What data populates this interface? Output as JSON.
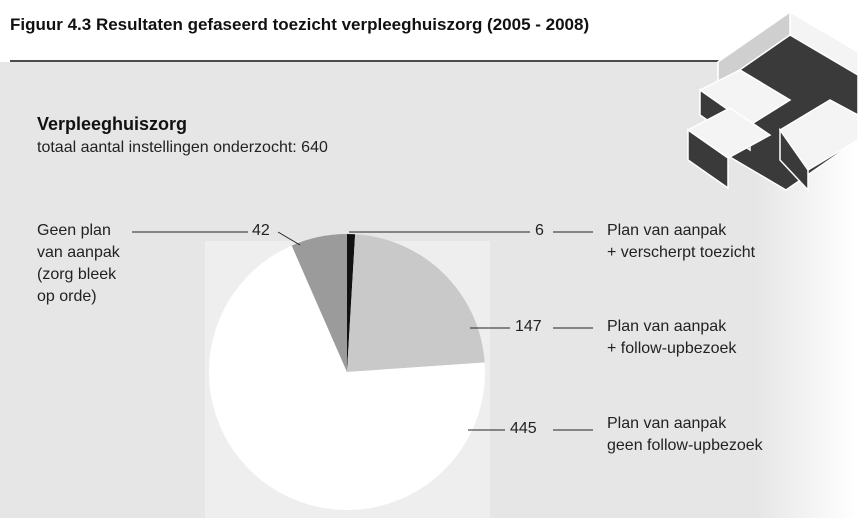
{
  "chart_data": {
    "type": "pie",
    "title": "Figuur 4.3 Resultaten gefaseerd toezicht verpleeghuiszorg (2005 - 2008)",
    "subtitle": "Verpleeghuiszorg",
    "note": "totaal aantal instellingen onderzocht: 640",
    "categories": [
      "Plan van aanpak\n+ verscherpt toezicht",
      "Plan van aanpak\n+ follow-upbezoek",
      "Plan van aanpak\ngeen follow-upbezoek",
      "Geen plan\nvan aanpak\n(zorg bleek\nop orde)"
    ],
    "values": [
      6,
      147,
      445,
      42
    ],
    "colors": [
      "#111111",
      "#c9c9c9",
      "#ffffff",
      "#9b9b9b"
    ]
  }
}
